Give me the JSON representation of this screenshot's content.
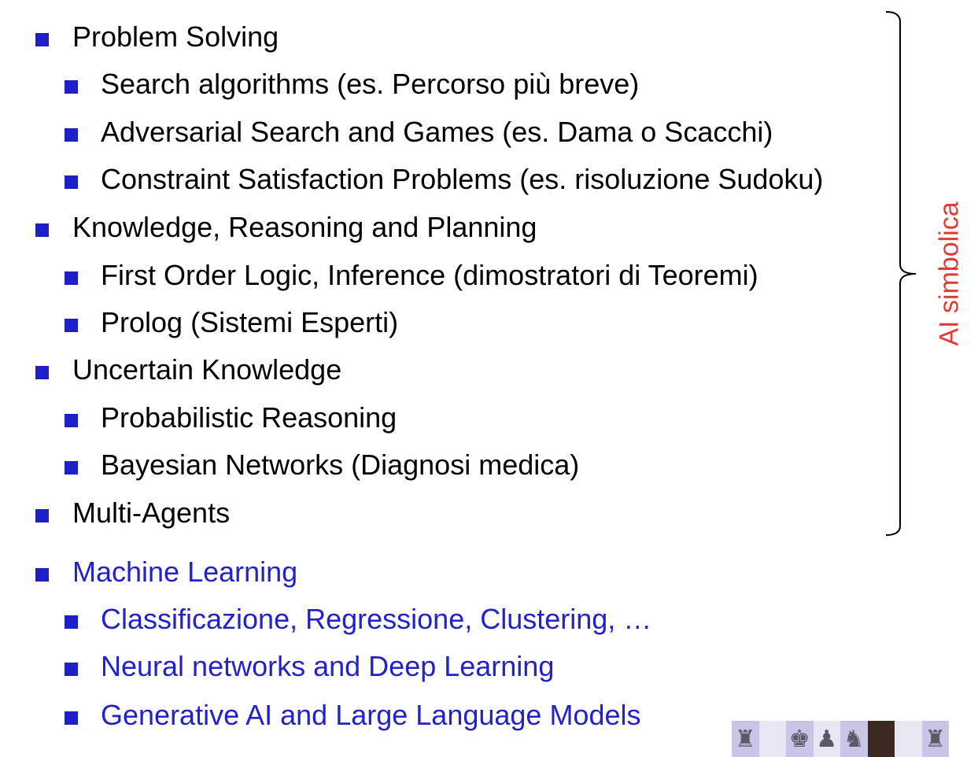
{
  "outline": [
    {
      "level": 1,
      "text": "Problem Solving",
      "color": "black"
    },
    {
      "level": 2,
      "text": "Search algorithms (es. Percorso più breve)",
      "color": "black"
    },
    {
      "level": 2,
      "text": "Adversarial Search and Games (es. Dama o Scacchi)",
      "color": "black"
    },
    {
      "level": 2,
      "text": "Constraint Satisfaction Problems (es. risoluzione Sudoku)",
      "color": "black"
    },
    {
      "level": 1,
      "text": "Knowledge, Reasoning and Planning",
      "color": "black"
    },
    {
      "level": 2,
      "text": "First Order Logic, Inference (dimostratori di Teoremi)",
      "color": "black"
    },
    {
      "level": 2,
      "text": "Prolog (Sistemi Esperti)",
      "color": "black"
    },
    {
      "level": 1,
      "text": "Uncertain Knowledge",
      "color": "black"
    },
    {
      "level": 2,
      "text": "Probabilistic Reasoning",
      "color": "black"
    },
    {
      "level": 2,
      "text": "Bayesian Networks (Diagnosi medica)",
      "color": "black"
    },
    {
      "level": 1,
      "text": "Multi-Agents",
      "color": "black"
    },
    {
      "level": 1,
      "text": "Machine Learning",
      "color": "blue"
    },
    {
      "level": 2,
      "text": "Classificazione, Regressione, Clustering, …",
      "color": "blue"
    },
    {
      "level": 2,
      "text": "Neural networks and Deep Learning",
      "color": "blue"
    },
    {
      "level": 2,
      "text": "Generative AI and Large Language Models",
      "color": "blue"
    }
  ],
  "side_label": "AI simbolica",
  "colors": {
    "bullet": "#1f1fc8",
    "text": "#000000",
    "highlight_text": "#2222cc",
    "side_label": "#e53935"
  },
  "decoration": {
    "chess_strip_icons": [
      "chess-rook-icon",
      "chess-king-icon",
      "chess-pawn-icon",
      "chess-knight-icon",
      "photo",
      "chess-rook-icon"
    ]
  }
}
